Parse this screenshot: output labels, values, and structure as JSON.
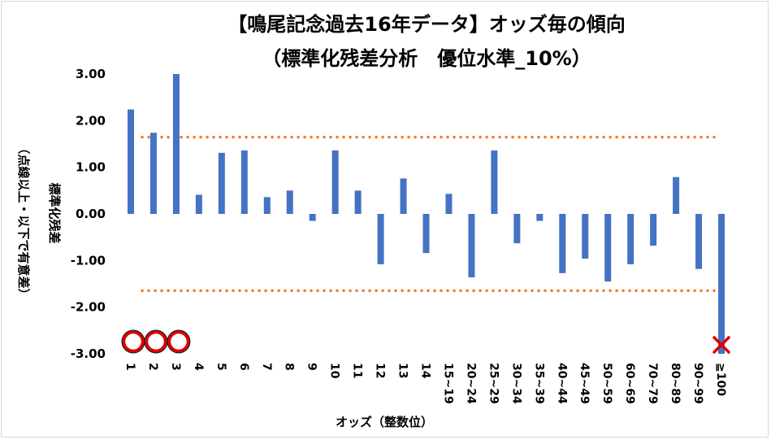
{
  "chart_data": {
    "type": "bar",
    "title_line1": "【鳴尾記念過去16年データ】オッズ毎の傾向",
    "title_line2": "（標準化残差分析　優位水準_10%）",
    "xlabel": "オッズ（整数位）",
    "ylabel_line1": "標準化残差",
    "ylabel_line2": "（点線以上・以下で有意差）",
    "ylim": [
      -3.0,
      3.0
    ],
    "yticks": [
      "3.00",
      "2.00",
      "1.00",
      "0.00",
      "-1.00",
      "-2.00",
      "-3.00"
    ],
    "ytick_values": [
      3,
      2,
      1,
      0,
      -1,
      -2,
      -3
    ],
    "categories": [
      "1",
      "2",
      "3",
      "4",
      "5",
      "6",
      "7",
      "8",
      "9",
      "10",
      "11",
      "12",
      "13",
      "14",
      "15~19",
      "20~24",
      "25~29",
      "30~34",
      "35~39",
      "40~44",
      "45~49",
      "50~59",
      "60~69",
      "70~79",
      "80~89",
      "90~99",
      "≧100"
    ],
    "values": [
      2.24,
      1.74,
      3.0,
      0.41,
      1.31,
      1.36,
      0.36,
      0.5,
      -0.15,
      1.36,
      0.5,
      -1.08,
      0.76,
      -0.84,
      0.43,
      -1.36,
      1.36,
      -0.63,
      -0.15,
      -1.27,
      -0.96,
      -1.45,
      -1.08,
      -0.68,
      0.79,
      -1.18,
      -3.0
    ],
    "threshold": 1.645,
    "bar_color": "#4472c4",
    "threshold_color": "#ed7d31",
    "circle_marker_categories": [
      "1",
      "2",
      "3"
    ],
    "circle_marker_color": "#e00000",
    "cross_marker_categories": [
      "≧100"
    ],
    "cross_marker_color": "#e00000",
    "grid": false
  }
}
